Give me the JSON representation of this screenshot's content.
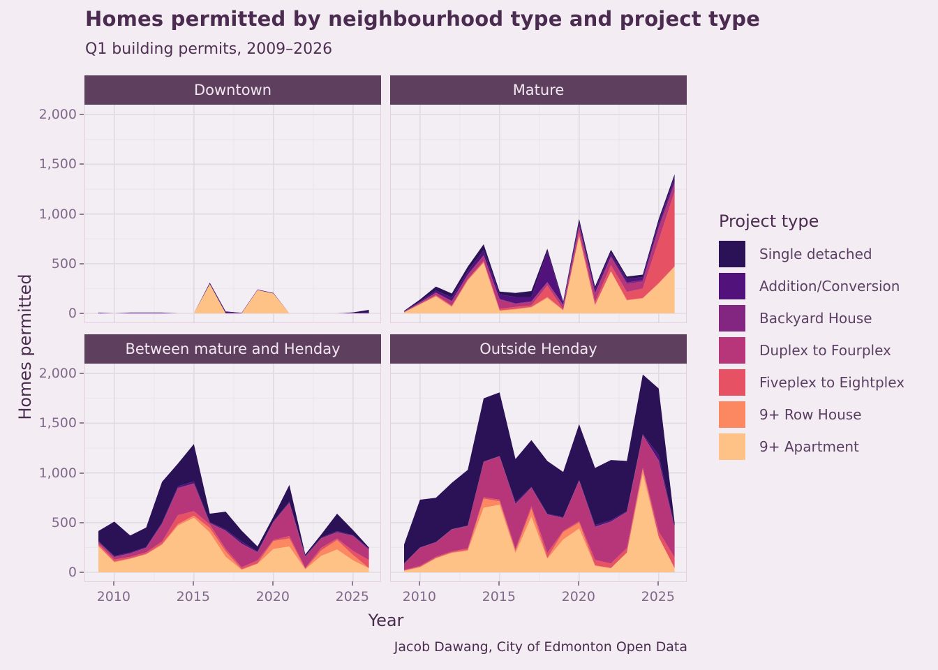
{
  "title": "Homes permitted by neighbourhood type and project type",
  "subtitle": "Q1 building permits, 2009–2026",
  "caption": "Jacob Dawang, City of Edmonton Open Data",
  "axes": {
    "x_title": "Year",
    "y_title": "Homes permitted",
    "x_tick_values": [
      2010,
      2015,
      2020,
      2025
    ],
    "x_tick_labels": [
      "2010",
      "2015",
      "2020",
      "2025"
    ],
    "y_tick_values": [
      0,
      500,
      1000,
      1500,
      2000
    ],
    "y_tick_labels": [
      "0",
      "500",
      "1,000",
      "1,500",
      "2,000"
    ],
    "y_minor_values": [
      250,
      750,
      1250,
      1750
    ],
    "x_minor_values": [
      2012.5,
      2017.5,
      2022.5
    ]
  },
  "colors": {
    "page_background": "#F3EDF3",
    "panel_background": "#F3EEF3",
    "strip_background": "#5E3F5E",
    "strip_text": "#F1E7F0",
    "grid_major": "#E2DAE2",
    "grid_minor": "#EAE4EA",
    "axis_text": "#80698A",
    "title_text": "#4B2C50"
  },
  "legend": {
    "title": "Project type",
    "items": [
      {
        "label": "Single detached",
        "color": "#2B1156"
      },
      {
        "label": "Addition/Conversion",
        "color": "#51127C"
      },
      {
        "label": "Backyard House",
        "color": "#822681"
      },
      {
        "label": "Duplex to Fourplex",
        "color": "#B63679"
      },
      {
        "label": "Fiveplex to Eightplex",
        "color": "#E65164"
      },
      {
        "label": "9+ Row House",
        "color": "#FB8861"
      },
      {
        "label": "9+ Apartment",
        "color": "#FEC287"
      }
    ]
  },
  "chart_data": {
    "type": "area",
    "stacked": true,
    "stack_order": "bottom_to_top",
    "x": [
      2009,
      2010,
      2011,
      2012,
      2013,
      2014,
      2015,
      2016,
      2017,
      2018,
      2019,
      2020,
      2021,
      2022,
      2023,
      2024,
      2025,
      2026
    ],
    "xlim": [
      2009,
      2026
    ],
    "ylim": [
      0,
      2000
    ],
    "grid": true,
    "legend_position": "right",
    "facets": [
      {
        "name": "Downtown",
        "series": [
          {
            "name": "9+ Apartment",
            "color": "#FEC287",
            "values": [
              0,
              0,
              0,
              0,
              0,
              0,
              0,
              295,
              0,
              0,
              235,
              200,
              0,
              0,
              0,
              0,
              0,
              0
            ]
          },
          {
            "name": "9+ Row House",
            "color": "#FB8861",
            "values": [
              0,
              0,
              0,
              0,
              0,
              0,
              0,
              0,
              0,
              0,
              0,
              0,
              0,
              0,
              0,
              0,
              0,
              0
            ]
          },
          {
            "name": "Fiveplex to Eightplex",
            "color": "#E65164",
            "values": [
              0,
              0,
              0,
              0,
              0,
              0,
              0,
              0,
              0,
              0,
              0,
              0,
              0,
              0,
              0,
              0,
              0,
              0
            ]
          },
          {
            "name": "Duplex to Fourplex",
            "color": "#B63679",
            "values": [
              0,
              0,
              0,
              0,
              0,
              0,
              0,
              0,
              0,
              0,
              0,
              0,
              0,
              0,
              0,
              0,
              0,
              0
            ]
          },
          {
            "name": "Backyard House",
            "color": "#822681",
            "values": [
              0,
              0,
              0,
              0,
              0,
              0,
              0,
              0,
              0,
              0,
              0,
              0,
              0,
              0,
              0,
              0,
              0,
              0
            ]
          },
          {
            "name": "Addition/Conversion",
            "color": "#51127C",
            "values": [
              8,
              0,
              8,
              8,
              8,
              0,
              0,
              10,
              15,
              5,
              5,
              5,
              0,
              0,
              0,
              0,
              5,
              10
            ]
          },
          {
            "name": "Single detached",
            "color": "#2B1156",
            "values": [
              0,
              0,
              0,
              0,
              0,
              0,
              0,
              5,
              5,
              0,
              0,
              0,
              0,
              0,
              0,
              0,
              5,
              25
            ]
          }
        ]
      },
      {
        "name": "Mature",
        "series": [
          {
            "name": "9+ Apartment",
            "color": "#FEC287",
            "values": [
              10,
              90,
              170,
              65,
              330,
              510,
              25,
              40,
              60,
              155,
              30,
              775,
              80,
              420,
              130,
              150,
              300,
              470
            ]
          },
          {
            "name": "9+ Row House",
            "color": "#FB8861",
            "values": [
              0,
              3,
              5,
              5,
              5,
              5,
              5,
              5,
              5,
              10,
              2,
              5,
              5,
              5,
              5,
              5,
              5,
              5
            ]
          },
          {
            "name": "Fiveplex to Eightplex",
            "color": "#E65164",
            "values": [
              2,
              5,
              10,
              10,
              10,
              15,
              15,
              20,
              15,
              115,
              8,
              40,
              30,
              60,
              80,
              95,
              430,
              750
            ]
          },
          {
            "name": "Duplex to Fourplex",
            "color": "#B63679",
            "values": [
              5,
              10,
              20,
              40,
              40,
              50,
              95,
              30,
              35,
              30,
              40,
              50,
              80,
              80,
              80,
              70,
              120,
              75
            ]
          },
          {
            "name": "Backyard House",
            "color": "#822681",
            "values": [
              0,
              2,
              5,
              5,
              5,
              5,
              5,
              5,
              5,
              5,
              5,
              10,
              10,
              10,
              15,
              15,
              20,
              25
            ]
          },
          {
            "name": "Addition/Conversion",
            "color": "#51127C",
            "values": [
              3,
              10,
              20,
              35,
              35,
              50,
              45,
              65,
              45,
              305,
              20,
              35,
              35,
              35,
              35,
              30,
              40,
              40
            ]
          },
          {
            "name": "Single detached",
            "color": "#2B1156",
            "values": [
              5,
              20,
              40,
              40,
              45,
              60,
              30,
              40,
              60,
              30,
              15,
              35,
              30,
              30,
              25,
              25,
              35,
              35
            ]
          }
        ]
      },
      {
        "name": "Between mature and Henday",
        "series": [
          {
            "name": "9+ Apartment",
            "color": "#FEC287",
            "values": [
              260,
              100,
              135,
              180,
              275,
              470,
              550,
              400,
              155,
              25,
              85,
              235,
              260,
              30,
              165,
              230,
              120,
              40
            ]
          },
          {
            "name": "9+ Row House",
            "color": "#FB8861",
            "values": [
              12,
              8,
              5,
              5,
              10,
              15,
              20,
              45,
              55,
              5,
              5,
              80,
              80,
              3,
              55,
              95,
              55,
              3
            ]
          },
          {
            "name": "Fiveplex to Eightplex",
            "color": "#E65164",
            "values": [
              15,
              20,
              15,
              15,
              25,
              90,
              45,
              35,
              25,
              20,
              30,
              10,
              25,
              12,
              25,
              15,
              40,
              80
            ]
          },
          {
            "name": "Duplex to Fourplex",
            "color": "#B63679",
            "values": [
              20,
              25,
              35,
              45,
              175,
              270,
              275,
              15,
              180,
              235,
              80,
              180,
              330,
              110,
              95,
              60,
              150,
              105
            ]
          },
          {
            "name": "Backyard House",
            "color": "#822681",
            "values": [
              0,
              2,
              2,
              2,
              5,
              5,
              5,
              2,
              3,
              3,
              3,
              3,
              5,
              3,
              3,
              5,
              3,
              2
            ]
          },
          {
            "name": "Addition/Conversion",
            "color": "#51127C",
            "values": [
              8,
              10,
              8,
              8,
              10,
              15,
              20,
              8,
              12,
              22,
              7,
              7,
              10,
              7,
              7,
              10,
              7,
              10
            ]
          },
          {
            "name": "Single detached",
            "color": "#2B1156",
            "values": [
              100,
              345,
              170,
              195,
              410,
              230,
              375,
              85,
              180,
              110,
              50,
              45,
              170,
              15,
              30,
              175,
              50,
              10
            ]
          }
        ]
      },
      {
        "name": "Outside Henday",
        "series": [
          {
            "name": "9+ Apartment",
            "color": "#FEC287",
            "values": [
              15,
              50,
              140,
              195,
              215,
              650,
              680,
              195,
              560,
              135,
              330,
              440,
              65,
              40,
              195,
              990,
              350,
              40
            ]
          },
          {
            "name": "9+ Row House",
            "color": "#FB8861",
            "values": [
              3,
              5,
              5,
              5,
              10,
              90,
              35,
              20,
              80,
              10,
              75,
              60,
              5,
              3,
              5,
              50,
              5,
              2
            ]
          },
          {
            "name": "Fiveplex to Eightplex",
            "color": "#E65164",
            "values": [
              5,
              10,
              10,
              10,
              15,
              15,
              15,
              20,
              25,
              50,
              10,
              15,
              55,
              45,
              45,
              10,
              55,
              108
            ]
          },
          {
            "name": "Duplex to Fourplex",
            "color": "#B63679",
            "values": [
              65,
              180,
              145,
              220,
              225,
              355,
              435,
              450,
              185,
              385,
              130,
              405,
              330,
              420,
              360,
              330,
              710,
              300
            ]
          },
          {
            "name": "Backyard House",
            "color": "#822681",
            "values": [
              0,
              2,
              2,
              2,
              2,
              2,
              2,
              3,
              3,
              3,
              3,
              3,
              3,
              3,
              3,
              3,
              5,
              2
            ]
          },
          {
            "name": "Addition/Conversion",
            "color": "#51127C",
            "values": [
              2,
              3,
              3,
              3,
              3,
              3,
              3,
              17,
              7,
              7,
              7,
              7,
              17,
              14,
              7,
              7,
              55,
              10
            ]
          },
          {
            "name": "Single detached",
            "color": "#2B1156",
            "values": [
              190,
              480,
              445,
              465,
              560,
              635,
              640,
              435,
              470,
              530,
              455,
              560,
              575,
              605,
              505,
              600,
              670,
              38
            ]
          }
        ]
      }
    ]
  }
}
